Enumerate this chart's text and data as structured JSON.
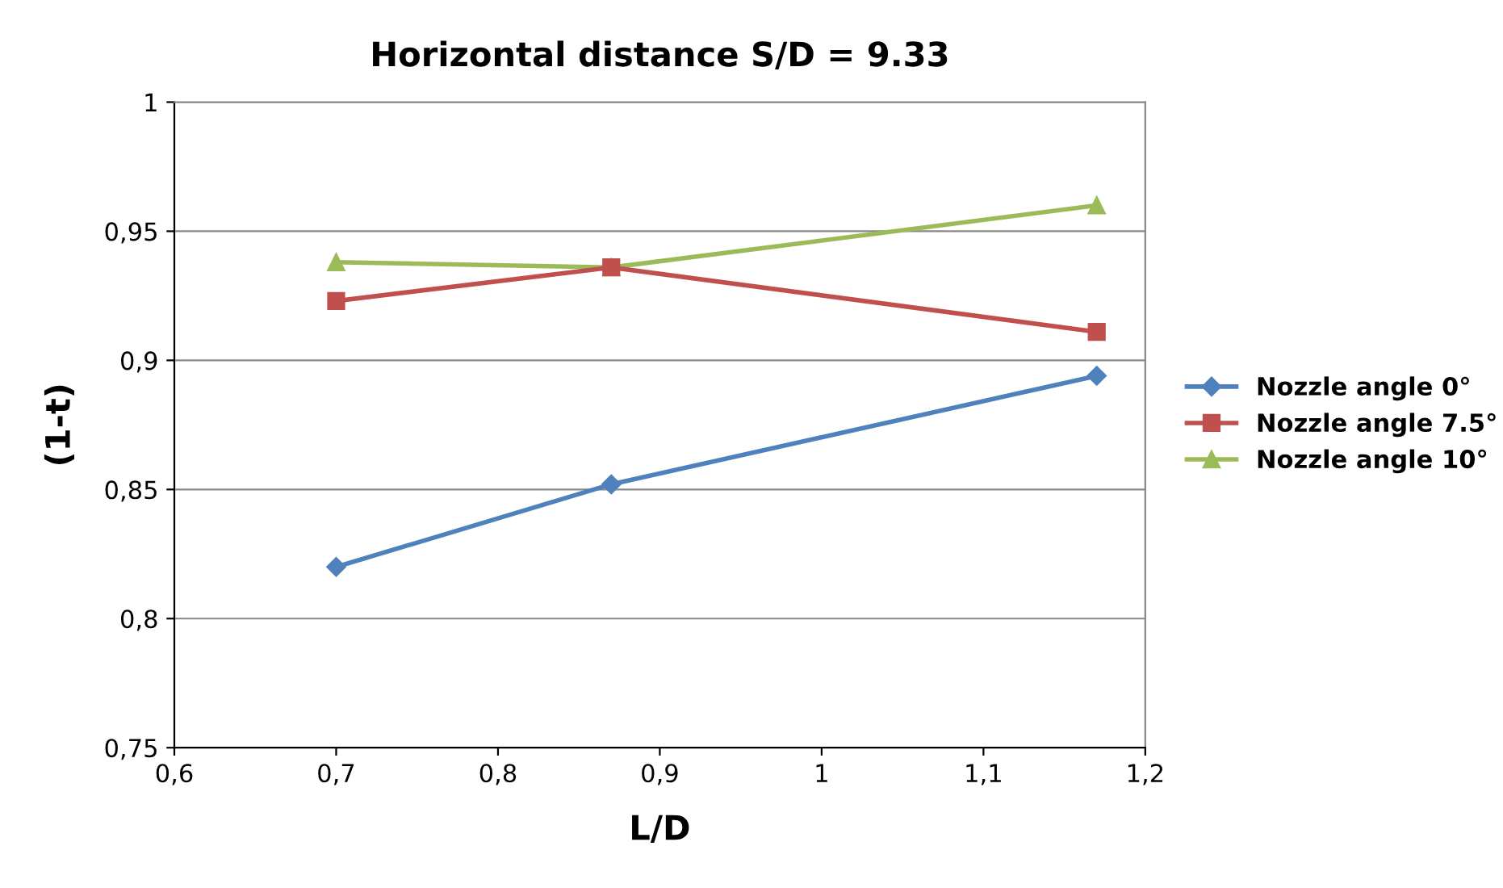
{
  "chart_data": {
    "type": "line",
    "title": "Horizontal distance S/D = 9.33",
    "xlabel": "L/D",
    "ylabel": "(1-t)",
    "x": [
      0.7,
      0.87,
      1.17
    ],
    "series": [
      {
        "name": "Nozzle angle 0°",
        "color": "#4f81bd",
        "marker": "diamond",
        "values": [
          0.82,
          0.852,
          0.894
        ]
      },
      {
        "name": "Nozzle angle 7.5°",
        "color": "#c0504d",
        "marker": "square",
        "values": [
          0.923,
          0.936,
          0.911
        ]
      },
      {
        "name": "Nozzle angle 10°",
        "color": "#9bbb59",
        "marker": "triangle",
        "values": [
          0.938,
          0.936,
          0.96
        ]
      }
    ],
    "xlim": [
      0.6,
      1.2
    ],
    "xticks": [
      {
        "value": 0.6,
        "label": "0,6"
      },
      {
        "value": 0.7,
        "label": "0,7"
      },
      {
        "value": 0.8,
        "label": "0,8"
      },
      {
        "value": 0.9,
        "label": "0,9"
      },
      {
        "value": 1,
        "label": "1"
      },
      {
        "value": 1.1,
        "label": "1,1"
      },
      {
        "value": 1.2,
        "label": "1,2"
      }
    ],
    "ylim": [
      0.75,
      1
    ],
    "yticks": [
      {
        "value": 0.75,
        "label": "0,75"
      },
      {
        "value": 0.8,
        "label": "0,8"
      },
      {
        "value": 0.85,
        "label": "0,85"
      },
      {
        "value": 0.9,
        "label": "0,9"
      },
      {
        "value": 0.95,
        "label": "0,95"
      },
      {
        "value": 1,
        "label": "1"
      }
    ],
    "grid": "y",
    "legend": "right",
    "line_style": "solid"
  }
}
